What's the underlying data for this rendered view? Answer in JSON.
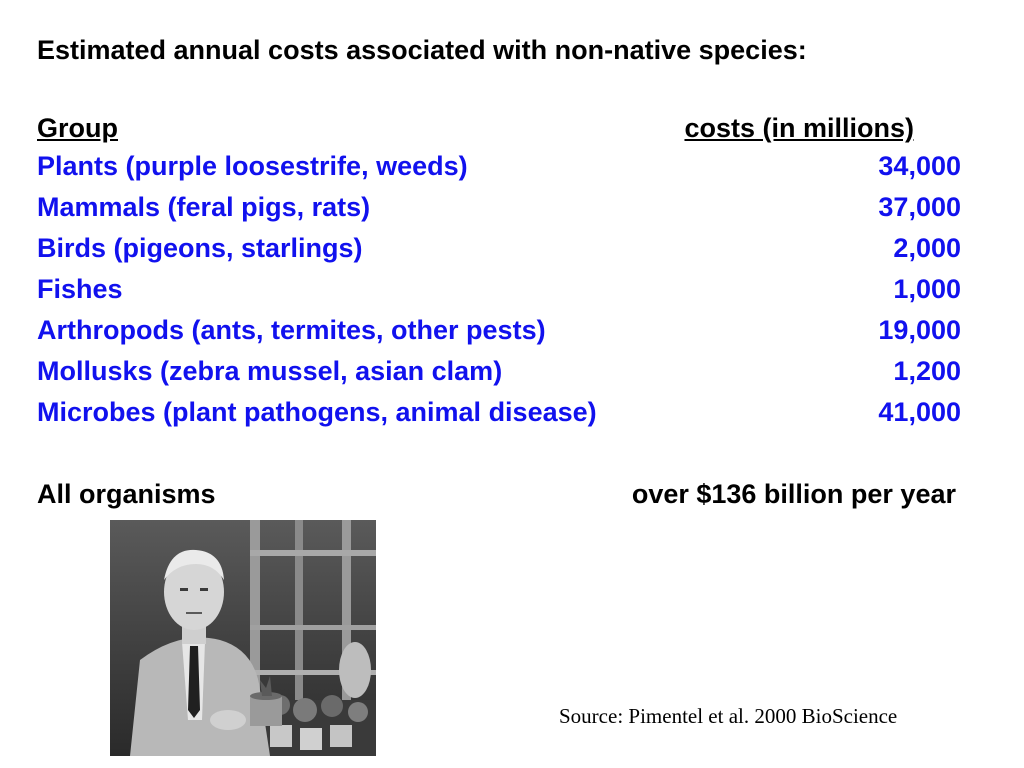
{
  "title": "Estimated annual costs associated with non-native species:",
  "header": {
    "group": "Group",
    "costs": "costs (in millions)"
  },
  "rows": [
    {
      "group": "Plants (purple loosestrife, weeds)",
      "cost": "34,000"
    },
    {
      "group": "Mammals (feral pigs, rats)",
      "cost": "37,000"
    },
    {
      "group": "Birds (pigeons, starlings)",
      "cost": "2,000"
    },
    {
      "group": "Fishes",
      "cost": "1,000"
    },
    {
      "group": "Arthropods (ants, termites, other pests)",
      "cost": "19,000"
    },
    {
      "group": "Mollusks (zebra mussel, asian clam)",
      "cost": "1,200"
    },
    {
      "group": "Microbes (plant pathogens, animal disease)",
      "cost": "41,000"
    }
  ],
  "total": {
    "label": "All organisms",
    "value": "over $136 billion per year"
  },
  "source": "Source: Pimentel et al. 2000 BioScience",
  "colors": {
    "row_text": "#1111ee",
    "heading_text": "#000000"
  }
}
